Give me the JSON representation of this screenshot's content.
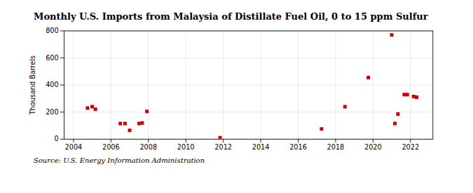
{
  "chart_data": {
    "type": "scatter",
    "title": "Monthly U.S. Imports from Malaysia of Distillate Fuel Oil, 0 to 15 ppm Sulfur",
    "ylabel": "Thousand Barrels",
    "source": "Source: U.S. Energy Information Administration",
    "x": [
      2004.75,
      2005.0,
      2005.17,
      2006.5,
      2006.75,
      2007.0,
      2007.5,
      2007.67,
      2007.92,
      2011.83,
      2017.25,
      2018.5,
      2019.75,
      2021.0,
      2021.17,
      2021.33,
      2021.67,
      2021.83,
      2022.17,
      2022.33
    ],
    "values": [
      230,
      240,
      220,
      115,
      115,
      65,
      115,
      120,
      205,
      10,
      75,
      240,
      455,
      770,
      115,
      185,
      330,
      330,
      315,
      310
    ],
    "color": "#cc0000",
    "marker": "square",
    "xlim": [
      2003.5,
      2023.2
    ],
    "ylim": [
      0,
      800
    ],
    "xticks": [
      2004,
      2006,
      2008,
      2010,
      2012,
      2014,
      2016,
      2018,
      2020,
      2022
    ],
    "yticks": [
      0,
      200,
      400,
      600,
      800
    ],
    "grid": true
  }
}
